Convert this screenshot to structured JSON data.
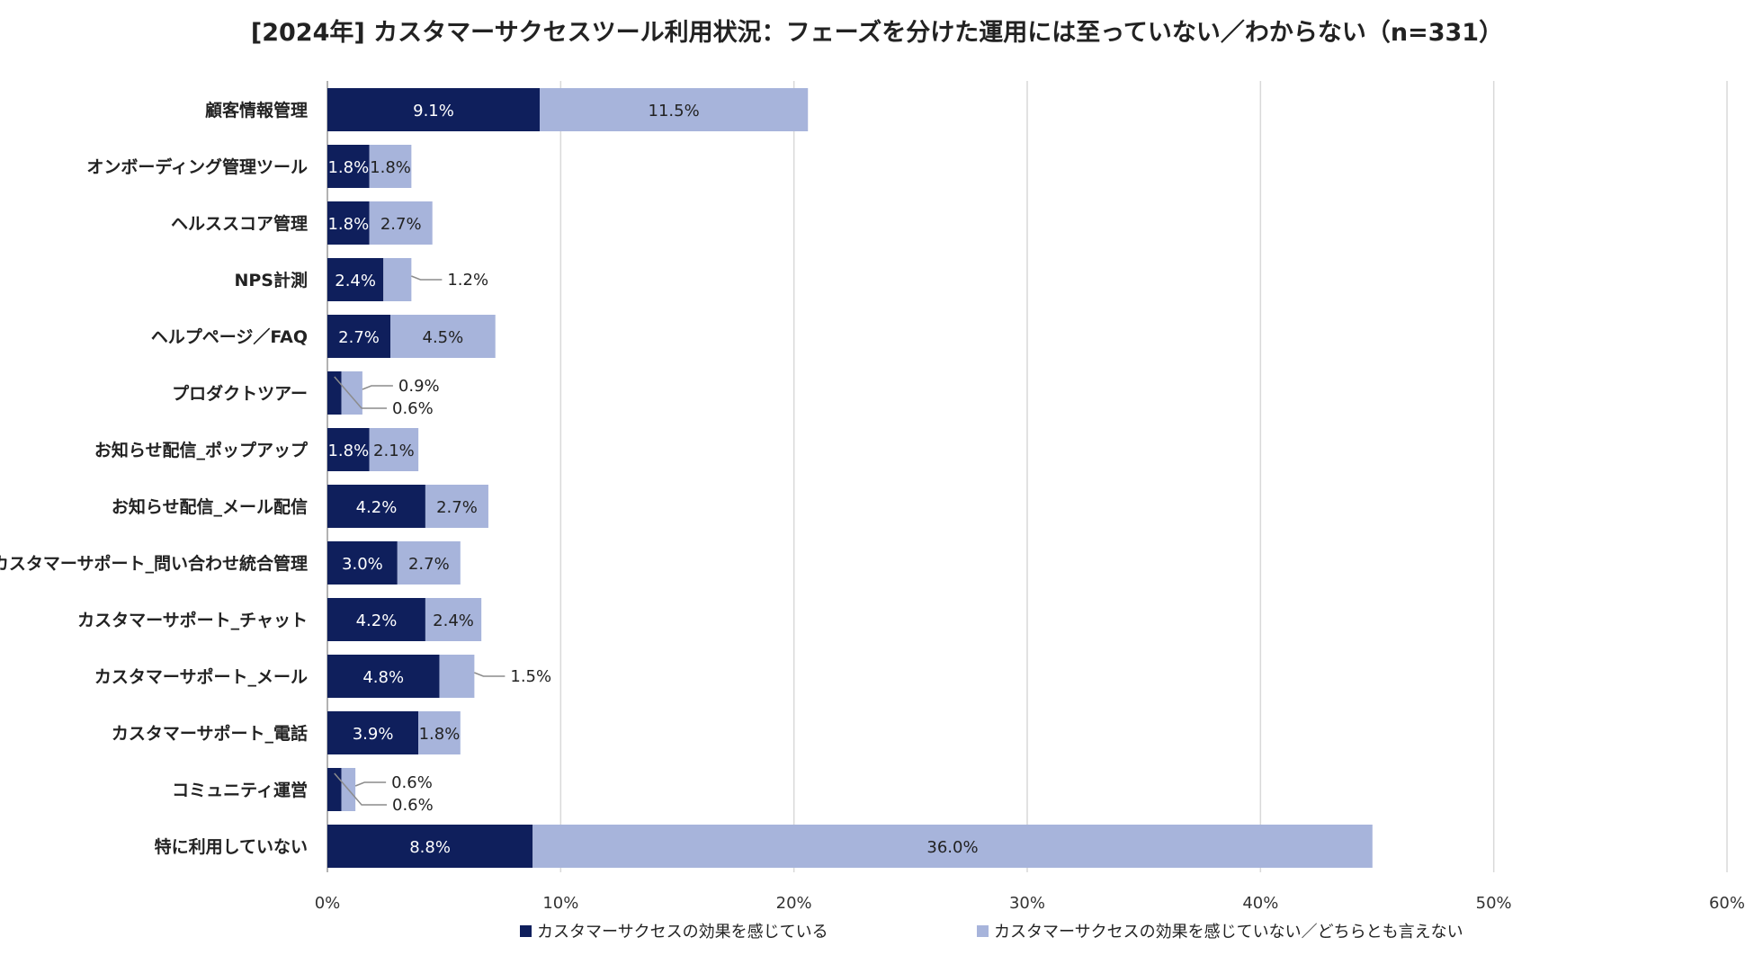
{
  "chart_data": {
    "type": "bar",
    "orientation": "horizontal",
    "stacked": true,
    "title": "[2024年]  カスタマーサクセスツール利用状況：フェーズを分けた運用には至っていない／わからない（n=331）",
    "categories": [
      "顧客情報管理",
      "オンボーディング管理ツール",
      "ヘルススコア管理",
      "NPS計測",
      "ヘルプページ／FAQ",
      "プロダクトツアー",
      "お知らせ配信_ポップアップ",
      "お知らせ配信_メール配信",
      "カスタマーサポート_問い合わせ統合管理",
      "カスタマーサポート_チャット",
      "カスタマーサポート_メール",
      "カスタマーサポート_電話",
      "コミュニティ運営",
      "特に利用していない"
    ],
    "series": [
      {
        "name": "カスタマーサクセスの効果を感じている",
        "color": "#0f1f5c",
        "values": [
          9.1,
          1.8,
          1.8,
          2.4,
          2.7,
          0.6,
          1.8,
          4.2,
          3.0,
          4.2,
          4.8,
          3.9,
          0.6,
          8.8
        ],
        "labels": [
          "9.1%",
          "1.8%",
          "1.8%",
          "2.4%",
          "2.7%",
          "0.6%",
          "1.8%",
          "4.2%",
          "3.0%",
          "4.2%",
          "4.8%",
          "3.9%",
          "0.6%",
          "8.8%"
        ]
      },
      {
        "name": "カスタマーサクセスの効果を感じていない／どちらとも言えない",
        "color": "#a7b4db",
        "values": [
          11.5,
          1.8,
          2.7,
          1.2,
          4.5,
          0.9,
          2.1,
          2.7,
          2.7,
          2.4,
          1.5,
          1.8,
          0.6,
          36.0
        ],
        "labels": [
          "11.5%",
          "1.8%",
          "2.7%",
          "1.2%",
          "4.5%",
          "0.9%",
          "2.1%",
          "2.7%",
          "2.7%",
          "2.4%",
          "1.5%",
          "1.8%",
          "0.6%",
          "36.0%"
        ]
      }
    ],
    "xlim": [
      0,
      60
    ],
    "xticks": [
      "0%",
      "10%",
      "20%",
      "30%",
      "40%",
      "50%",
      "60%"
    ],
    "grid": true,
    "legend_position": "bottom",
    "xlabel": "",
    "ylabel": ""
  }
}
